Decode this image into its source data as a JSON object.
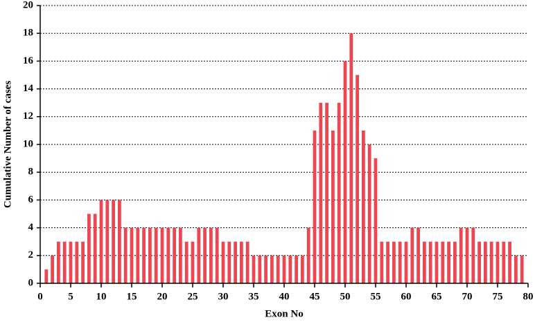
{
  "chart_data": {
    "type": "bar",
    "x_label": "Exon No",
    "y_label": "Cumulative Number of cases",
    "x": [
      1,
      2,
      3,
      4,
      5,
      6,
      7,
      8,
      9,
      10,
      11,
      12,
      13,
      14,
      15,
      16,
      17,
      18,
      19,
      20,
      21,
      22,
      23,
      24,
      25,
      26,
      27,
      28,
      29,
      30,
      31,
      32,
      33,
      34,
      35,
      36,
      37,
      38,
      39,
      40,
      41,
      42,
      43,
      44,
      45,
      46,
      47,
      48,
      49,
      50,
      51,
      52,
      53,
      54,
      55,
      56,
      57,
      58,
      59,
      60,
      61,
      62,
      63,
      64,
      65,
      66,
      67,
      68,
      69,
      70,
      71,
      72,
      73,
      74,
      75,
      76,
      77,
      78,
      79
    ],
    "values": [
      1,
      2,
      3,
      3,
      3,
      3,
      3,
      5,
      5,
      6,
      6,
      6,
      6,
      4,
      4,
      4,
      4,
      4,
      4,
      4,
      4,
      4,
      4,
      3,
      3,
      4,
      4,
      4,
      4,
      3,
      3,
      3,
      3,
      3,
      2,
      2,
      2,
      2,
      2,
      2,
      2,
      2,
      2,
      4,
      11,
      13,
      13,
      11,
      13,
      16,
      18,
      15,
      11,
      10,
      9,
      3,
      3,
      3,
      3,
      3,
      4,
      4,
      3,
      3,
      3,
      3,
      3,
      3,
      4,
      4,
      4,
      3,
      3,
      3,
      3,
      3,
      3,
      2,
      2
    ],
    "color": "#ec4651",
    "xlim": [
      0,
      80
    ],
    "xticks": [
      0,
      5,
      10,
      15,
      20,
      25,
      30,
      35,
      40,
      45,
      50,
      55,
      60,
      65,
      70,
      75,
      80
    ],
    "ylim": [
      0,
      20
    ],
    "yticks": [
      0,
      2,
      4,
      6,
      8,
      10,
      12,
      14,
      16,
      18,
      20
    ],
    "grid": true
  }
}
